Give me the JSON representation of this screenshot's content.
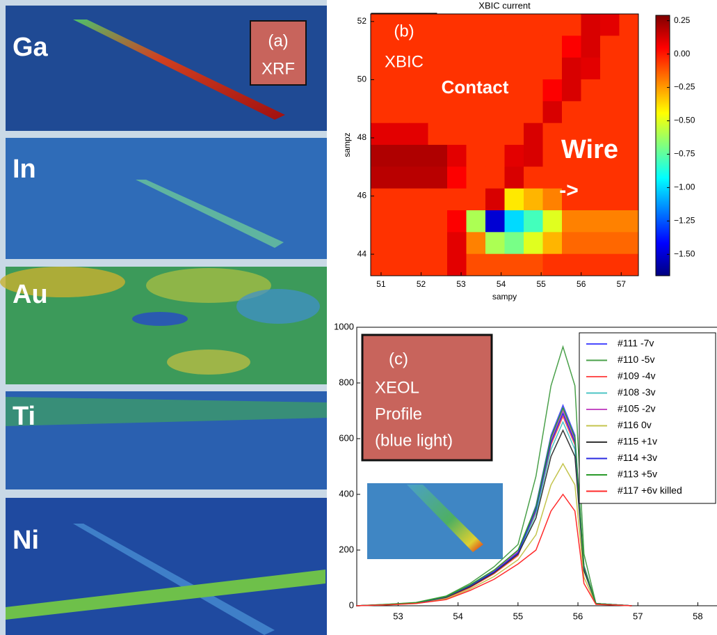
{
  "panel_a": {
    "label": "(a)",
    "method": "XRF",
    "elements": [
      "Ga",
      "In",
      "Au",
      "Ti",
      "Ni"
    ]
  },
  "chart_data": [
    {
      "type": "heatmap",
      "title": "XBIC current",
      "x_label": "sampy",
      "y_label": "sampz",
      "panel_label": "(b)",
      "method": "XBIC",
      "annotations": [
        "Contact",
        "Wire",
        "->"
      ],
      "xlim": [
        50.74,
        57.43
      ],
      "ylim": [
        43.26,
        52.26
      ],
      "xticks": [
        51,
        52,
        53,
        54,
        55,
        56,
        57
      ],
      "yticks": [
        44,
        46,
        48,
        50,
        52
      ],
      "colormap": "jet",
      "clim": [
        -1.66,
        0.29
      ],
      "cticks": [
        {
          "value": 0.25,
          "label": "0.25"
        },
        {
          "value": 0,
          "label": "0.00"
        },
        {
          "value": -0.25,
          "label": "−0.25"
        },
        {
          "value": -0.5,
          "label": "−0.50"
        },
        {
          "value": -0.75,
          "label": "−0.75"
        },
        {
          "value": -1,
          "label": "−1.00"
        },
        {
          "value": -1.25,
          "label": "−1.25"
        },
        {
          "value": -1.5,
          "label": "−1.50"
        }
      ],
      "z": [
        [
          -0.05,
          -0.05,
          -0.05,
          -0.05,
          -0.05,
          -0.05,
          -0.05,
          -0.05,
          -0.05,
          -0.05,
          -0.05,
          0.12,
          0.1,
          -0.05
        ],
        [
          -0.05,
          -0.05,
          -0.05,
          -0.05,
          -0.05,
          -0.05,
          -0.05,
          -0.05,
          -0.05,
          -0.05,
          0.05,
          0.12,
          -0.05,
          -0.05
        ],
        [
          -0.05,
          -0.05,
          -0.05,
          -0.05,
          -0.05,
          -0.05,
          -0.05,
          -0.05,
          -0.05,
          -0.05,
          0.12,
          0.1,
          -0.05,
          -0.05
        ],
        [
          -0.05,
          -0.05,
          -0.05,
          -0.05,
          -0.05,
          -0.05,
          -0.05,
          -0.05,
          -0.05,
          0.05,
          0.12,
          -0.05,
          -0.05,
          -0.05
        ],
        [
          -0.05,
          -0.05,
          -0.05,
          -0.05,
          -0.05,
          -0.05,
          -0.05,
          -0.05,
          -0.05,
          0.12,
          -0.05,
          -0.05,
          -0.05,
          -0.05
        ],
        [
          0.1,
          0.1,
          0.1,
          -0.05,
          -0.05,
          -0.05,
          -0.05,
          -0.05,
          0.12,
          -0.05,
          -0.05,
          -0.05,
          -0.05,
          -0.05
        ],
        [
          0.2,
          0.2,
          0.2,
          0.2,
          0.1,
          -0.05,
          -0.05,
          0.1,
          0.12,
          -0.05,
          -0.05,
          -0.05,
          -0.05,
          -0.05
        ],
        [
          0.18,
          0.18,
          0.18,
          0.18,
          0.05,
          -0.05,
          -0.05,
          0.12,
          -0.05,
          -0.05,
          -0.05,
          -0.05,
          -0.05,
          -0.05
        ],
        [
          -0.05,
          -0.05,
          -0.05,
          -0.05,
          -0.05,
          -0.05,
          0.12,
          -0.4,
          -0.3,
          -0.2,
          -0.05,
          -0.05,
          -0.05,
          -0.05
        ],
        [
          -0.05,
          -0.05,
          -0.05,
          -0.05,
          0.05,
          -0.6,
          -1.5,
          -1.0,
          -0.8,
          -0.5,
          -0.2,
          -0.2,
          -0.2,
          -0.2
        ],
        [
          -0.05,
          -0.05,
          -0.05,
          -0.05,
          0.1,
          -0.2,
          -0.6,
          -0.7,
          -0.5,
          -0.3,
          -0.15,
          -0.15,
          -0.15,
          -0.15
        ],
        [
          -0.05,
          -0.05,
          -0.05,
          -0.05,
          0.1,
          -0.1,
          -0.1,
          -0.1,
          -0.1,
          -0.05,
          -0.05,
          -0.05,
          -0.05,
          -0.05
        ]
      ]
    },
    {
      "type": "line",
      "panel_label": "(c)",
      "annotation_lines": [
        "XEOL",
        "Profile",
        "(blue light)"
      ],
      "xlim": [
        52.31,
        58.32
      ],
      "ylim": [
        0,
        1000
      ],
      "xticks": [
        53,
        54,
        55,
        56,
        57,
        58
      ],
      "yticks": [
        0,
        200,
        400,
        600,
        800,
        1000
      ],
      "x": [
        52.3,
        52.8,
        53.3,
        53.8,
        54.2,
        54.6,
        55.0,
        55.3,
        55.55,
        55.75,
        55.95,
        56.1,
        56.3,
        56.9
      ],
      "series": [
        {
          "name": "#111 -7v",
          "color": "#4a4aff",
          "values": [
            0,
            4,
            10,
            30,
            70,
            120,
            190,
            360,
            612,
            720,
            612,
            144,
            8,
            0
          ]
        },
        {
          "name": "#110 -5v",
          "color": "#4aa04a",
          "values": [
            0,
            5,
            12,
            35,
            80,
            140,
            220,
            465,
            790,
            930,
            790,
            186,
            8,
            0
          ]
        },
        {
          "name": "#109 -4v",
          "color": "#ff5050",
          "values": [
            0,
            4,
            10,
            28,
            65,
            115,
            180,
            340,
            578,
            680,
            578,
            136,
            8,
            0
          ]
        },
        {
          "name": "#108 -3v",
          "color": "#4cc4c4",
          "values": [
            0,
            4,
            10,
            30,
            70,
            120,
            185,
            330,
            561,
            660,
            561,
            132,
            8,
            0
          ]
        },
        {
          "name": "#105 -2v",
          "color": "#c44cc4",
          "values": [
            0,
            4,
            10,
            30,
            70,
            125,
            195,
            350,
            595,
            700,
            595,
            140,
            8,
            0
          ]
        },
        {
          "name": "#116 0v",
          "color": "#c4c44c",
          "values": [
            0,
            3,
            8,
            25,
            60,
            105,
            165,
            255,
            434,
            510,
            434,
            102,
            6,
            0
          ]
        },
        {
          "name": "#115 +1v",
          "color": "#333333",
          "values": [
            0,
            4,
            10,
            30,
            68,
            118,
            185,
            315,
            536,
            630,
            536,
            126,
            8,
            0
          ]
        },
        {
          "name": "#114 +3v",
          "color": "#2a2ae0",
          "values": [
            0,
            4,
            10,
            32,
            72,
            122,
            190,
            345,
            587,
            690,
            587,
            138,
            8,
            0
          ]
        },
        {
          "name": "#113 +5v",
          "color": "#2a9a2a",
          "values": [
            0,
            5,
            11,
            33,
            75,
            128,
            200,
            355,
            604,
            710,
            604,
            142,
            8,
            0
          ]
        },
        {
          "name": "#117 +6v killed",
          "color": "#ff2a2a",
          "values": [
            0,
            3,
            8,
            22,
            55,
            95,
            150,
            200,
            340,
            400,
            340,
            80,
            5,
            0
          ]
        }
      ]
    }
  ]
}
